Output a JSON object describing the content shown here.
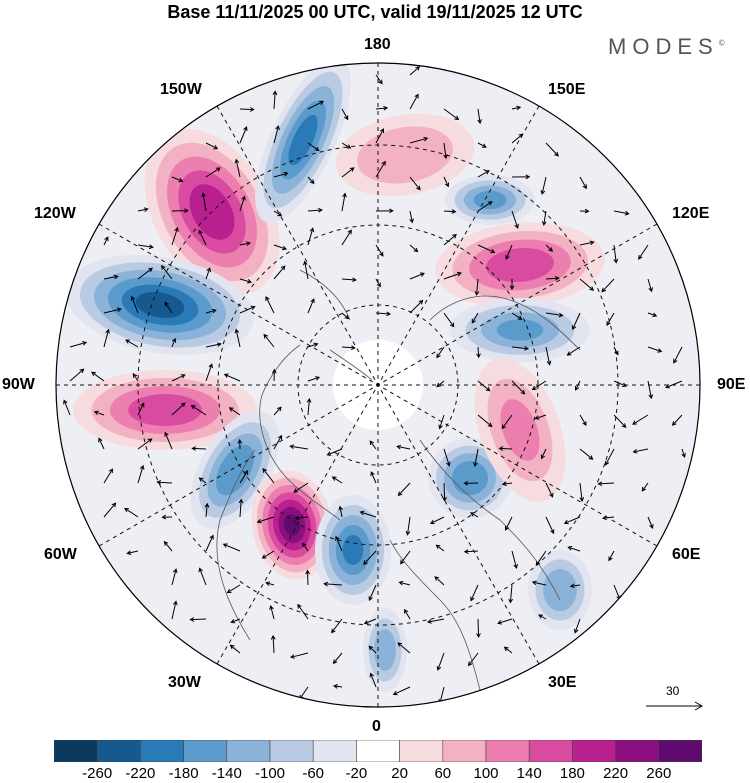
{
  "title": "Base 11/11/2025 00 UTC, valid 19/11/2025 12 UTC",
  "brand": "MODES",
  "brand_mark": "©",
  "longitude_labels": {
    "n180": "180",
    "w150": "150W",
    "e150": "150E",
    "w120": "120W",
    "e120": "120E",
    "w90": "90W",
    "e90": "90E",
    "w60": "60W",
    "e60": "60E",
    "w30": "30W",
    "e30": "30E",
    "s0": "0"
  },
  "reference_vector": {
    "label": "30"
  },
  "colorbar": {
    "ticks": [
      "-260",
      "-220",
      "-180",
      "-140",
      "-100",
      "-60",
      "-20",
      "20",
      "60",
      "100",
      "140",
      "180",
      "220",
      "260"
    ],
    "colors": [
      "#0b3a5e",
      "#15598f",
      "#2a7ab8",
      "#5a9bcc",
      "#8bb3d9",
      "#b9cbe2",
      "#e2e4f0",
      "#ffffff",
      "#f7dcdf",
      "#f2b2c3",
      "#ec7fb0",
      "#d94ba0",
      "#b81f8f",
      "#8c0f80",
      "#5e0a6e"
    ]
  },
  "anomaly_centers": [
    {
      "name": "pos-150w",
      "value": 200
    },
    {
      "name": "neg-170w",
      "value": -190
    },
    {
      "name": "neg-110w",
      "value": -230
    },
    {
      "name": "pos-95w",
      "value": 160
    },
    {
      "name": "neg-70w",
      "value": -170
    },
    {
      "name": "pos-50w",
      "value": 260
    },
    {
      "name": "neg-20w",
      "value": -180
    },
    {
      "name": "neg-5e",
      "value": -120
    },
    {
      "name": "pos-150e",
      "value": 90
    },
    {
      "name": "neg-150e",
      "value": -150
    },
    {
      "name": "pos-130e",
      "value": 160
    },
    {
      "name": "neg-110e",
      "value": -140
    },
    {
      "name": "neg-50e",
      "value": -170
    },
    {
      "name": "pos-70e",
      "value": 100
    },
    {
      "name": "neg-35e",
      "value": -130
    }
  ]
}
